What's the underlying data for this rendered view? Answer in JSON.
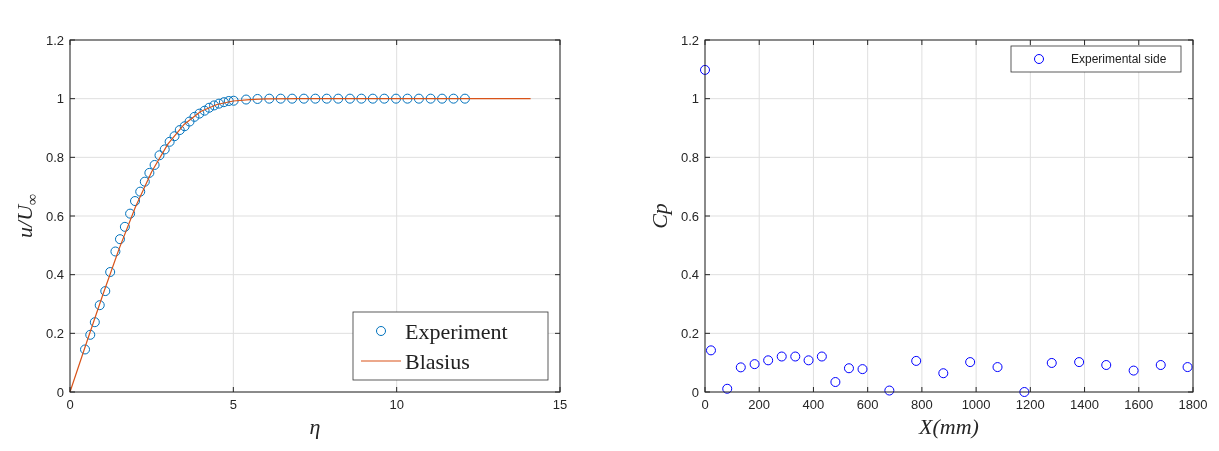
{
  "chart_data": [
    {
      "type": "scatter",
      "xlabel": "η",
      "ylabel": "u/U$_{∞}$",
      "xlim": [
        0,
        15
      ],
      "xticks": [
        0,
        5,
        10,
        15
      ],
      "ylim": [
        0,
        1.2
      ],
      "yticks": [
        0,
        0.2,
        0.4,
        0.6,
        0.8,
        1,
        1.2
      ],
      "grid": true,
      "legend": "bottom right",
      "series": [
        {
          "name": "Experiment",
          "marker": "circle",
          "color": "#0072bd",
          "x": [
            0.46,
            0.62,
            0.76,
            0.91,
            1.08,
            1.23,
            1.39,
            1.53,
            1.68,
            1.84,
            1.99,
            2.15,
            2.29,
            2.43,
            2.59,
            2.74,
            2.9,
            3.05,
            3.2,
            3.36,
            3.51,
            3.66,
            3.81,
            3.96,
            4.12,
            4.26,
            4.41,
            4.56,
            4.71,
            4.86,
            5.01,
            5.39,
            5.74,
            6.1,
            6.45,
            6.8,
            7.16,
            7.51,
            7.86,
            8.21,
            8.57,
            8.92,
            9.27,
            9.62,
            9.98,
            10.33,
            10.68,
            11.04,
            11.39,
            11.74,
            12.09
          ],
          "values": [
            0.145,
            0.195,
            0.238,
            0.296,
            0.344,
            0.409,
            0.479,
            0.521,
            0.563,
            0.608,
            0.651,
            0.683,
            0.717,
            0.747,
            0.774,
            0.807,
            0.827,
            0.853,
            0.872,
            0.893,
            0.906,
            0.922,
            0.938,
            0.949,
            0.959,
            0.969,
            0.977,
            0.983,
            0.988,
            0.992,
            0.993,
            0.997,
            0.999,
            1,
            1,
            1,
            1,
            1,
            1,
            1,
            1,
            1,
            1,
            1,
            1,
            1,
            1,
            1,
            1,
            1,
            1
          ]
        },
        {
          "name": "Blasius",
          "type": "line",
          "marker": "none",
          "line_style": "solid",
          "color": "#d95319",
          "x": [
            0,
            0.5,
            1,
            1.5,
            2,
            2.5,
            3,
            3.5,
            4,
            4.5,
            5,
            5.5,
            6,
            7,
            14.1
          ],
          "values": [
            0,
            0.166,
            0.33,
            0.487,
            0.63,
            0.751,
            0.846,
            0.913,
            0.956,
            0.98,
            0.992,
            0.997,
            0.999,
            1,
            1
          ]
        }
      ]
    },
    {
      "type": "scatter",
      "xlabel": "X(mm)",
      "ylabel": "Cp",
      "xlim": [
        0,
        1800
      ],
      "xticks": [
        0,
        200,
        400,
        600,
        800,
        1000,
        1200,
        1400,
        1600,
        1800
      ],
      "ylim": [
        0,
        1.2
      ],
      "yticks": [
        0,
        0.2,
        0.4,
        0.6,
        0.8,
        1,
        1.2
      ],
      "grid": true,
      "legend": "top right",
      "series": [
        {
          "name": "Experimental side",
          "marker": "circle",
          "color": "#0000ff",
          "x": [
            0,
            22,
            82,
            132,
            183,
            233,
            283,
            333,
            382,
            431,
            481,
            531,
            581,
            680,
            779,
            879,
            978,
            1079,
            1178,
            1279,
            1380,
            1480,
            1581,
            1681,
            1780
          ],
          "values": [
            1.098,
            0.142,
            0.011,
            0.084,
            0.095,
            0.108,
            0.121,
            0.121,
            0.108,
            0.121,
            0.034,
            0.081,
            0.078,
            0.005,
            0.106,
            0.064,
            0.102,
            0.085,
            0,
            0.099,
            0.102,
            0.092,
            0.073,
            0.092,
            0.085
          ]
        }
      ]
    }
  ]
}
